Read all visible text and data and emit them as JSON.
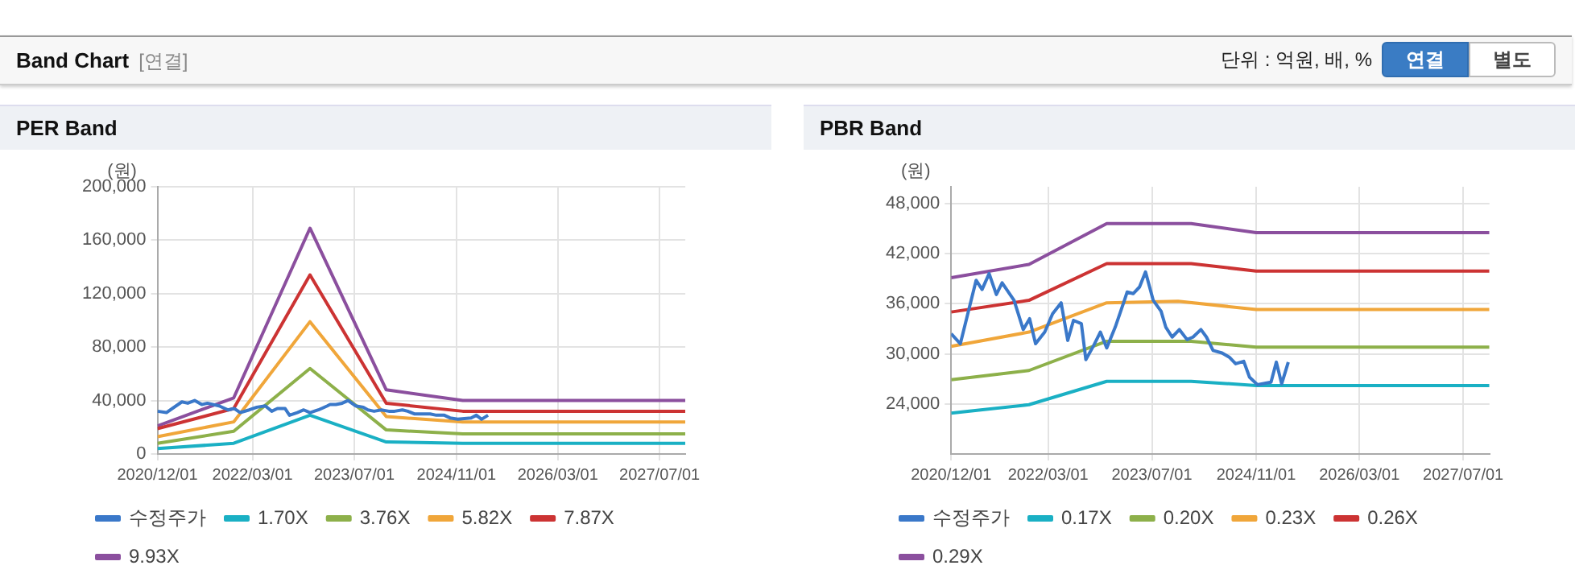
{
  "chart_data": [
    {
      "type": "other",
      "title": "Band Chart",
      "subtitle": "[연결]",
      "annotations": [
        "단위 : 억원, 배, %",
        "연결",
        "별도"
      ]
    },
    {
      "type": "line",
      "title": "PER Band",
      "ylabel": "(원)",
      "xlim": [
        "2020-12-01",
        "2027-11-01"
      ],
      "xticks": [
        {
          "value": "2020-12-01",
          "label": "2020/12/01"
        },
        {
          "value": "2022-03-01",
          "label": "2022/03/01"
        },
        {
          "value": "2023-07-01",
          "label": "2023/07/01"
        },
        {
          "value": "2024-11-01",
          "label": "2024/11/01"
        },
        {
          "value": "2026-03-01",
          "label": "2026/03/01"
        },
        {
          "value": "2027-07-01",
          "label": "2027/07/01"
        }
      ],
      "ylim": [
        0,
        200000
      ],
      "yticks": [
        {
          "value": 0,
          "label": "0"
        },
        {
          "value": 40000,
          "label": "40,000"
        },
        {
          "value": 80000,
          "label": "80,000"
        },
        {
          "value": 120000,
          "label": "120,000"
        },
        {
          "value": 160000,
          "label": "160,000"
        },
        {
          "value": 200000,
          "label": "200,000"
        }
      ],
      "grid": true,
      "legend": "bottom",
      "marker": "none",
      "line_style": "solid",
      "series": [
        {
          "name": "수정주가",
          "color": "#3a78c9",
          "x": [
            "2020-12-01",
            "2021-01-13",
            "2021-03-28",
            "2021-04-25",
            "2021-05-28",
            "2021-07-01",
            "2021-07-28",
            "2021-09-22",
            "2021-11-04",
            "2021-12-04",
            "2022-01-01",
            "2022-02-13",
            "2022-03-22",
            "2022-05-01",
            "2022-06-01",
            "2022-06-28",
            "2022-08-04",
            "2022-08-25",
            "2022-10-01",
            "2022-11-01",
            "2022-12-01",
            "2023-01-10",
            "2023-02-22",
            "2023-03-07",
            "2023-04-04",
            "2023-05-04",
            "2023-06-01",
            "2023-07-07",
            "2023-08-13",
            "2023-09-04",
            "2023-10-04",
            "2023-11-07",
            "2023-12-13",
            "2024-01-10",
            "2024-02-16",
            "2024-03-13",
            "2024-04-13",
            "2024-05-25",
            "2024-06-28",
            "2024-07-28",
            "2024-09-04",
            "2024-10-01",
            "2024-11-07",
            "2025-01-10",
            "2025-02-04",
            "2025-03-01",
            "2025-04-01"
          ],
          "values": [
            32000,
            31000,
            39000,
            38000,
            40000,
            37000,
            38000,
            36000,
            33000,
            34000,
            31000,
            33000,
            35000,
            36000,
            32000,
            34000,
            34000,
            29000,
            31000,
            33000,
            31000,
            33000,
            36000,
            37000,
            37000,
            38000,
            40000,
            36000,
            35000,
            33000,
            32000,
            33000,
            32000,
            32000,
            33000,
            32000,
            30000,
            30000,
            30000,
            29000,
            29000,
            27000,
            26000,
            27000,
            29000,
            26000,
            29000
          ]
        },
        {
          "name": "1.70X",
          "color": "#1ab0c4",
          "x": [
            "2020-12-01",
            "2021-12-01",
            "2022-12-01",
            "2023-12-01",
            "2024-12-01",
            "2027-11-01"
          ],
          "values": [
            4000,
            8000,
            29000,
            9000,
            8000,
            8000
          ]
        },
        {
          "name": "3.76X",
          "color": "#8db04a",
          "x": [
            "2020-12-01",
            "2021-12-01",
            "2022-12-01",
            "2023-12-01",
            "2024-12-01",
            "2027-11-01"
          ],
          "values": [
            8000,
            17000,
            64000,
            18000,
            15000,
            15000
          ]
        },
        {
          "name": "5.82X",
          "color": "#f0a63a",
          "x": [
            "2020-12-01",
            "2021-12-01",
            "2022-12-01",
            "2023-12-01",
            "2024-12-01",
            "2027-11-01"
          ],
          "values": [
            13000,
            24000,
            99000,
            28000,
            24000,
            24000
          ]
        },
        {
          "name": "7.87X",
          "color": "#cc3333",
          "x": [
            "2020-12-01",
            "2021-12-01",
            "2022-12-01",
            "2023-12-01",
            "2024-12-01",
            "2027-11-01"
          ],
          "values": [
            19000,
            34000,
            134000,
            38000,
            32000,
            32000
          ]
        },
        {
          "name": "9.93X",
          "color": "#8b4f9e",
          "x": [
            "2020-12-01",
            "2021-12-01",
            "2022-12-01",
            "2023-12-01",
            "2024-12-01",
            "2027-11-01"
          ],
          "values": [
            21000,
            42000,
            169000,
            48000,
            40000,
            40000
          ]
        }
      ]
    },
    {
      "type": "line",
      "title": "PBR Band",
      "ylabel": "(원)",
      "xlim": [
        "2020-12-01",
        "2027-11-01"
      ],
      "xticks": [
        {
          "value": "2020-12-01",
          "label": "2020/12/01"
        },
        {
          "value": "2022-03-01",
          "label": "2022/03/01"
        },
        {
          "value": "2023-07-01",
          "label": "2023/07/01"
        },
        {
          "value": "2024-11-01",
          "label": "2024/11/01"
        },
        {
          "value": "2026-03-01",
          "label": "2026/03/01"
        },
        {
          "value": "2027-07-01",
          "label": "2027/07/01"
        }
      ],
      "ylim": [
        18000,
        50000
      ],
      "yticks": [
        {
          "value": 24000,
          "label": "24,000"
        },
        {
          "value": 30000,
          "label": "30,000"
        },
        {
          "value": 36000,
          "label": "36,000"
        },
        {
          "value": 42000,
          "label": "42,000"
        },
        {
          "value": 48000,
          "label": "48,000"
        }
      ],
      "grid": true,
      "legend": "bottom",
      "marker": "none",
      "line_style": "solid",
      "series": [
        {
          "name": "수정주가",
          "color": "#3a78c9",
          "x": [
            "2020-12-01",
            "2021-01-13",
            "2021-03-28",
            "2021-04-25",
            "2021-05-28",
            "2021-07-01",
            "2021-07-28",
            "2021-09-22",
            "2021-11-04",
            "2021-12-04",
            "2022-01-01",
            "2022-02-13",
            "2022-03-22",
            "2022-05-01",
            "2022-06-01",
            "2022-06-28",
            "2022-08-04",
            "2022-08-25",
            "2022-10-01",
            "2022-11-01",
            "2022-12-01",
            "2023-01-10",
            "2023-02-22",
            "2023-03-07",
            "2023-04-04",
            "2023-05-04",
            "2023-06-01",
            "2023-07-07",
            "2023-08-13",
            "2023-09-04",
            "2023-10-04",
            "2023-11-07",
            "2023-12-13",
            "2024-01-10",
            "2024-02-16",
            "2024-03-13",
            "2024-04-13",
            "2024-05-25",
            "2024-06-28",
            "2024-07-28",
            "2024-09-04",
            "2024-10-01",
            "2024-11-07",
            "2025-01-10",
            "2025-02-04",
            "2025-03-01",
            "2025-04-01"
          ],
          "values": [
            32400,
            31200,
            38800,
            37700,
            39600,
            37100,
            38500,
            36400,
            32900,
            34200,
            31200,
            32600,
            34800,
            36100,
            31600,
            34000,
            33600,
            29300,
            31000,
            32600,
            30700,
            33200,
            36400,
            37400,
            37200,
            38000,
            39800,
            36400,
            35100,
            33200,
            32000,
            32900,
            31700,
            32000,
            32900,
            32000,
            30400,
            30100,
            29600,
            28800,
            29100,
            27200,
            26300,
            26600,
            29000,
            26400,
            29000
          ]
        },
        {
          "name": "0.17X",
          "color": "#1ab0c4",
          "x": [
            "2020-12-01",
            "2021-12-01",
            "2022-12-01",
            "2024-01-01",
            "2024-11-01",
            "2027-11-01"
          ],
          "values": [
            22900,
            23900,
            26700,
            26700,
            26200,
            26200
          ]
        },
        {
          "name": "0.20X",
          "color": "#8db04a",
          "x": [
            "2020-12-01",
            "2021-12-01",
            "2022-12-01",
            "2024-01-01",
            "2024-11-01",
            "2027-11-01"
          ],
          "values": [
            26900,
            28000,
            31500,
            31500,
            30800,
            30800
          ]
        },
        {
          "name": "0.23X",
          "color": "#f0a63a",
          "x": [
            "2020-12-01",
            "2021-12-01",
            "2022-12-01",
            "2023-11-01",
            "2024-11-01",
            "2027-11-01"
          ],
          "values": [
            30900,
            32600,
            36100,
            36300,
            35300,
            35300
          ]
        },
        {
          "name": "0.26X",
          "color": "#cc3333",
          "x": [
            "2020-12-01",
            "2021-12-01",
            "2022-12-01",
            "2024-01-01",
            "2024-11-01",
            "2027-11-01"
          ],
          "values": [
            35000,
            36400,
            40800,
            40800,
            39900,
            39900
          ]
        },
        {
          "name": "0.29X",
          "color": "#8b4f9e",
          "x": [
            "2020-12-01",
            "2021-12-01",
            "2022-12-01",
            "2024-01-01",
            "2024-11-01",
            "2027-11-01"
          ],
          "values": [
            39100,
            40700,
            45600,
            45600,
            44500,
            44500
          ]
        }
      ]
    }
  ]
}
